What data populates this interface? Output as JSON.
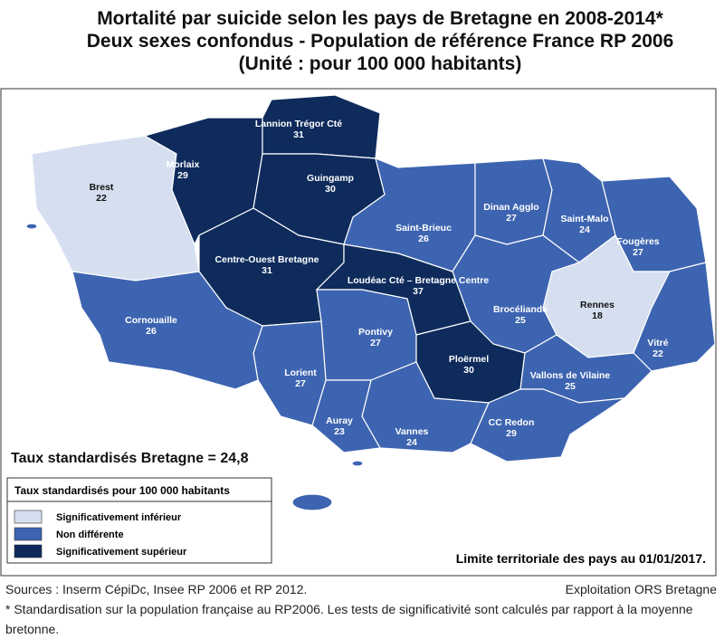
{
  "header": {
    "title_lines": [
      "Mortalité par suicide selon les pays de Bretagne en 2008-2014*",
      "Deux sexes confondus - Population de référence France RP 2006",
      "(Unité : pour 100 000 habitants)"
    ]
  },
  "regions": [
    {
      "name": "Brest",
      "value": 22
    },
    {
      "name": "Morlaix",
      "value": 29
    },
    {
      "name": "Lannion Trégor Cté",
      "value": 31
    },
    {
      "name": "Guingamp",
      "value": 30
    },
    {
      "name": "Centre-Ouest Bretagne",
      "value": 31
    },
    {
      "name": "Saint-Brieuc",
      "value": 26
    },
    {
      "name": "Dinan Agglo",
      "value": 27
    },
    {
      "name": "Saint-Malo",
      "value": 24
    },
    {
      "name": "Fougères",
      "value": 27
    },
    {
      "name": "Rennes",
      "value": 18
    },
    {
      "name": "Vitré",
      "value": 22
    },
    {
      "name": "Brocéliande",
      "value": 25
    },
    {
      "name": "Loudéac Cté – Bretagne Centre",
      "value": 37
    },
    {
      "name": "Pontivy",
      "value": 27
    },
    {
      "name": "Ploërmel",
      "value": 30
    },
    {
      "name": "Vallons de Vilaine",
      "value": 25
    },
    {
      "name": "CC Redon",
      "value": 29
    },
    {
      "name": "Vannes",
      "value": 24
    },
    {
      "name": "Auray",
      "value": 23
    },
    {
      "name": "Lorient",
      "value": 27
    },
    {
      "name": "Cornouaille",
      "value": 26
    }
  ],
  "regional_rate": "Taux standardisés Bretagne = 24,8",
  "legend": {
    "title": "Taux standardisés pour 100 000 habitants",
    "items": [
      "Significativement inférieur",
      "Non différente",
      "Significativement supérieur"
    ]
  },
  "territorial_note": "Limite territoriale des pays au 01/01/2017.",
  "footer": {
    "sources": "Sources : Inserm CépiDc, Insee RP 2006 et RP 2012.",
    "credit": "Exploitation ORS Bretagne",
    "footnote": "* Standardisation sur la population française au RP2006. Les tests de significativité sont calculés par rapport à la moyenne bretonne."
  }
}
